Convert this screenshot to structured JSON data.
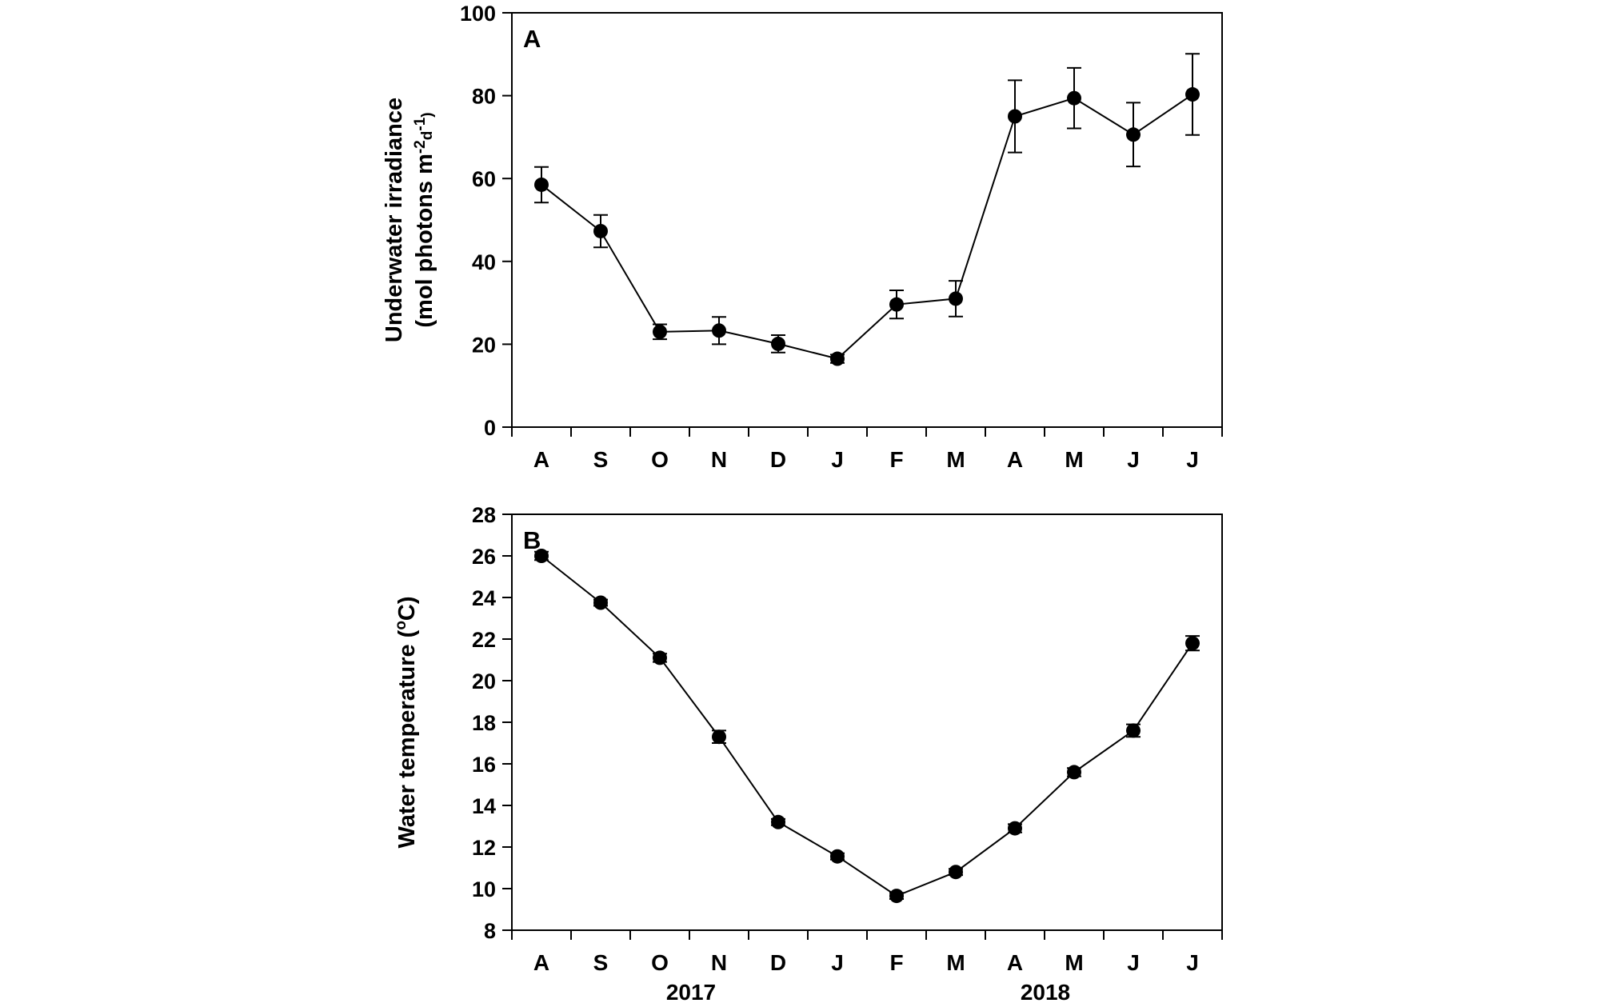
{
  "chart_data": [
    {
      "type": "line",
      "panel_label": "A",
      "title": "",
      "xlabel": "",
      "ylabel_lines": [
        "Underwater irradiance",
        "(mol photons m",
        "-2",
        "d",
        "-1",
        ")"
      ],
      "ylim": [
        0,
        100
      ],
      "yticks": [
        0,
        20,
        40,
        60,
        80,
        100
      ],
      "categories": [
        "A",
        "S",
        "O",
        "N",
        "D",
        "J",
        "F",
        "M",
        "A",
        "M",
        "J",
        "J"
      ],
      "values": [
        58.5,
        47.3,
        23.0,
        23.3,
        20.1,
        16.5,
        29.6,
        31.0,
        75.0,
        79.4,
        70.6,
        80.3
      ],
      "errors": [
        4.3,
        3.9,
        1.8,
        3.3,
        2.1,
        1.0,
        3.4,
        4.3,
        8.7,
        7.3,
        7.7,
        9.8
      ],
      "grid": false,
      "legend": "none"
    },
    {
      "type": "line",
      "panel_label": "B",
      "title": "",
      "xlabel": "",
      "ylabel": "Water temperature (°C)",
      "ylabel_parts": [
        "Water temperature (",
        "o",
        "C)"
      ],
      "ylim": [
        8,
        28
      ],
      "yticks": [
        8,
        10,
        12,
        14,
        16,
        18,
        20,
        22,
        24,
        26,
        28
      ],
      "categories": [
        "A",
        "S",
        "O",
        "N",
        "D",
        "J",
        "F",
        "M",
        "A",
        "M",
        "J",
        "J"
      ],
      "values": [
        26.0,
        23.75,
        21.1,
        17.3,
        13.2,
        11.55,
        9.65,
        10.8,
        12.9,
        15.6,
        17.6,
        21.8
      ],
      "errors": [
        0.2,
        0.15,
        0.2,
        0.3,
        0.15,
        0.15,
        0.15,
        0.15,
        0.2,
        0.2,
        0.3,
        0.35
      ],
      "grid": false,
      "legend": "none",
      "year_labels": [
        "2017",
        "2018"
      ]
    }
  ]
}
